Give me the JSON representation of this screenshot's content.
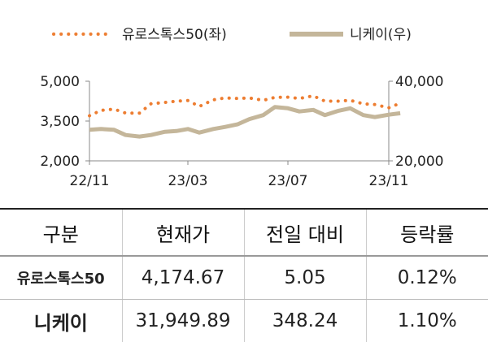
{
  "chart_data": {
    "type": "line",
    "x_ticks": [
      "22/11",
      "23/03",
      "23/07",
      "23/11"
    ],
    "x_range": [
      "2022-11",
      "2023-11"
    ],
    "grid": false,
    "legend_position": "top",
    "y_left": {
      "ticks": [
        "5,000",
        "3,500",
        "2,000"
      ],
      "range": [
        2000,
        5000
      ]
    },
    "y_right": {
      "ticks": [
        "40,000",
        "20,000"
      ],
      "range": [
        20000,
        40000
      ]
    },
    "series": [
      {
        "name": "유로스톡스50(좌)",
        "axis": "left",
        "style": "dotted",
        "color": "#ED7D31",
        "points": [
          [
            "2022-11-01",
            3700
          ],
          [
            "2022-11-15",
            3900
          ],
          [
            "2022-12-01",
            3950
          ],
          [
            "2022-12-15",
            3800
          ],
          [
            "2023-01-01",
            3800
          ],
          [
            "2023-01-15",
            4150
          ],
          [
            "2023-02-01",
            4200
          ],
          [
            "2023-02-15",
            4250
          ],
          [
            "2023-03-01",
            4270
          ],
          [
            "2023-03-15",
            4050
          ],
          [
            "2023-04-01",
            4300
          ],
          [
            "2023-04-15",
            4370
          ],
          [
            "2023-05-01",
            4350
          ],
          [
            "2023-05-15",
            4370
          ],
          [
            "2023-06-01",
            4280
          ],
          [
            "2023-06-15",
            4390
          ],
          [
            "2023-07-01",
            4400
          ],
          [
            "2023-07-15",
            4350
          ],
          [
            "2023-08-01",
            4450
          ],
          [
            "2023-08-15",
            4250
          ],
          [
            "2023-09-01",
            4250
          ],
          [
            "2023-09-15",
            4280
          ],
          [
            "2023-10-01",
            4150
          ],
          [
            "2023-10-15",
            4120
          ],
          [
            "2023-11-01",
            4000
          ],
          [
            "2023-11-15",
            4175
          ]
        ]
      },
      {
        "name": "니케이(우)",
        "axis": "right",
        "style": "solid",
        "color": "#C4B69A",
        "points": [
          [
            "2022-11-01",
            27800
          ],
          [
            "2022-11-15",
            28000
          ],
          [
            "2022-12-01",
            27800
          ],
          [
            "2022-12-15",
            26500
          ],
          [
            "2023-01-01",
            26100
          ],
          [
            "2023-01-15",
            26500
          ],
          [
            "2023-02-01",
            27300
          ],
          [
            "2023-02-15",
            27500
          ],
          [
            "2023-03-01",
            28000
          ],
          [
            "2023-03-15",
            27100
          ],
          [
            "2023-04-01",
            28000
          ],
          [
            "2023-04-15",
            28500
          ],
          [
            "2023-05-01",
            29200
          ],
          [
            "2023-05-15",
            30500
          ],
          [
            "2023-06-01",
            31500
          ],
          [
            "2023-06-15",
            33500
          ],
          [
            "2023-07-01",
            33200
          ],
          [
            "2023-07-15",
            32400
          ],
          [
            "2023-08-01",
            32800
          ],
          [
            "2023-08-15",
            31500
          ],
          [
            "2023-09-01",
            32600
          ],
          [
            "2023-09-15",
            33200
          ],
          [
            "2023-10-01",
            31500
          ],
          [
            "2023-10-15",
            31000
          ],
          [
            "2023-11-01",
            31600
          ],
          [
            "2023-11-15",
            31950
          ]
        ]
      }
    ]
  },
  "table": {
    "headers": [
      "구분",
      "현재가",
      "전일 대비",
      "등락률"
    ],
    "rows": [
      [
        "유로스톡스50",
        "4,174.67",
        "5.05",
        "0.12%"
      ],
      [
        "니케이",
        "31,949.89",
        "348.24",
        "1.10%"
      ]
    ]
  }
}
